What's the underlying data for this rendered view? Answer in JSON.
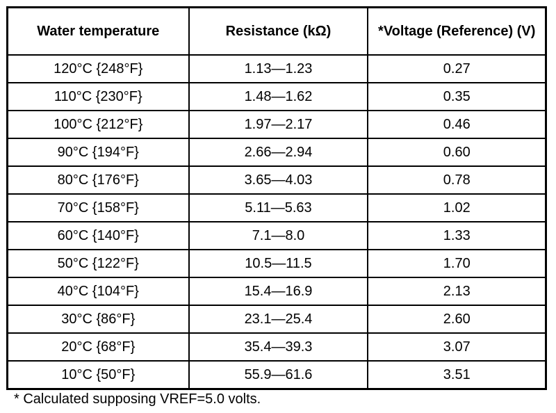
{
  "headers": [
    "Water temperature",
    "Resistance (kΩ)",
    "*Voltage (Reference) (V)"
  ],
  "rows": [
    [
      "120°C {248°F}",
      "1.13—1.23",
      "0.27"
    ],
    [
      "110°C {230°F}",
      "1.48—1.62",
      "0.35"
    ],
    [
      "100°C {212°F}",
      "1.97—2.17",
      "0.46"
    ],
    [
      "90°C {194°F}",
      "2.66—2.94",
      "0.60"
    ],
    [
      "80°C {176°F}",
      "3.65—4.03",
      "0.78"
    ],
    [
      "70°C {158°F}",
      "5.11—5.63",
      "1.02"
    ],
    [
      "60°C {140°F}",
      "7.1—8.0",
      "1.33"
    ],
    [
      "50°C {122°F}",
      "10.5—11.5",
      "1.70"
    ],
    [
      "40°C {104°F}",
      "15.4—16.9",
      "2.13"
    ],
    [
      "30°C {86°F}",
      "23.1—25.4",
      "2.60"
    ],
    [
      "20°C {68°F}",
      "35.4—39.3",
      "3.07"
    ],
    [
      "10°C {50°F}",
      "55.9—61.6",
      "3.51"
    ]
  ],
  "footnote": "*  Calculated supposing VREF=5.0 volts."
}
